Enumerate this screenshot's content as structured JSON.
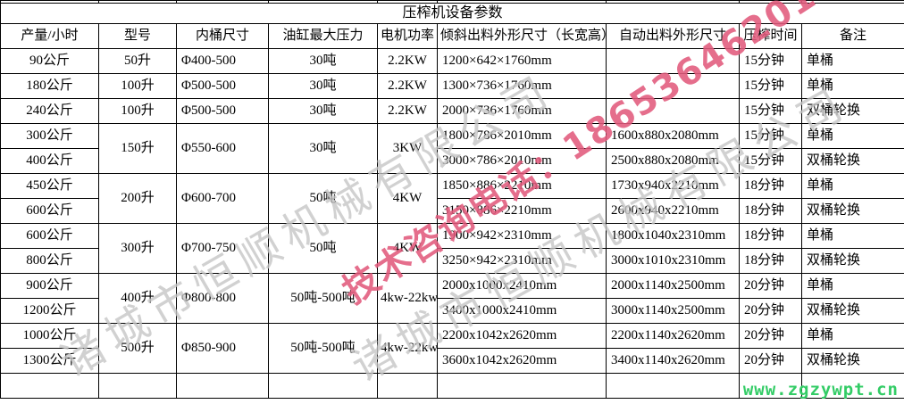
{
  "table": {
    "title": "压榨机设备参数",
    "columns": [
      "产量/小时",
      "型号",
      "内桶尺寸",
      "油缸最大压力",
      "电机功率",
      "倾斜出料外形尺寸（长宽高）",
      "自动出料外形尺寸",
      "压榨时间",
      "备注"
    ],
    "groups": [
      {
        "model": "50升",
        "barrel": "Φ400-500",
        "pressure": "30吨",
        "power": "2.2KW",
        "rows": [
          {
            "capacity": "90公斤",
            "tilt": "1200×642×1760mm",
            "auto": "",
            "time": "15分钟",
            "note": "单桶"
          }
        ]
      },
      {
        "model": "100升",
        "barrel": "Φ500-500",
        "pressure": "30吨",
        "power": "2.2KW",
        "rows": [
          {
            "capacity": "180公斤",
            "tilt": "1300×736×1760mm",
            "auto": "",
            "time": "15分钟",
            "note": "单桶"
          }
        ]
      },
      {
        "model": "100升",
        "barrel": "Φ500-500",
        "pressure": "30吨",
        "power": "2.2KW",
        "rows": [
          {
            "capacity": "240公斤",
            "tilt": "2000×736×1760mm",
            "auto": "",
            "time": "15分钟",
            "note": "双桶轮换"
          }
        ]
      },
      {
        "model": "150升",
        "barrel": "Φ550-600",
        "pressure": "30吨",
        "power": "3KW",
        "rows": [
          {
            "capacity": "300公斤",
            "tilt": "1800×786×2010mm",
            "auto": "1600x880x2080mm",
            "time": "15分钟",
            "note": "单桶"
          },
          {
            "capacity": "400公斤",
            "tilt": "3000×786×2010mm",
            "auto": "2500x880x2080mm",
            "time": "15分钟",
            "note": "双桶轮换"
          }
        ]
      },
      {
        "model": "200升",
        "barrel": "Φ600-700",
        "pressure": "50吨",
        "power": "4KW",
        "rows": [
          {
            "capacity": "450公斤",
            "tilt": "1850×886×2210mm",
            "auto": "1730x940x2210mm",
            "time": "18分钟",
            "note": "单桶"
          },
          {
            "capacity": "600公斤",
            "tilt": "3150×886×2210mm",
            "auto": "2600x940x2210mm",
            "time": "18分钟",
            "note": "双桶轮换"
          }
        ]
      },
      {
        "model": "300升",
        "barrel": "Φ700-750",
        "pressure": "50吨",
        "power": "4KW",
        "rows": [
          {
            "capacity": "600公斤",
            "tilt": "1900×942×2310mm",
            "auto": "1800x1040x2310mm",
            "time": "18分钟",
            "note": "单桶"
          },
          {
            "capacity": "800公斤",
            "tilt": "3250×942×2310mm",
            "auto": "3000x1010x2310mm",
            "time": "18分钟",
            "note": "双桶轮换"
          }
        ]
      },
      {
        "model": "400升",
        "barrel": "Φ800-800",
        "pressure": "50吨-500吨",
        "power": "4kw-22kw",
        "rows": [
          {
            "capacity": "900公斤",
            "tilt": "2000x1000x2410mm",
            "auto": "2000x1140x2500mm",
            "time": "20分钟",
            "note": "单桶"
          },
          {
            "capacity": "1200公斤",
            "tilt": "3400x1000x2410mm",
            "auto": "3000x1140x2500mm",
            "time": "20分钟",
            "note": "双桶轮换"
          }
        ]
      },
      {
        "model": "500升",
        "barrel": "Φ850-900",
        "pressure": "50吨-500吨",
        "power": "4kw-22kw",
        "rows": [
          {
            "capacity": "1000公斤",
            "tilt": "2200x1042x2620mm",
            "auto": "2200x1140x2620mm",
            "time": "20分钟",
            "note": "单桶"
          },
          {
            "capacity": "1300公斤",
            "tilt": "3600x1042x2620mm",
            "auto": "3400x1140x2620mm",
            "time": "20分钟",
            "note": "双桶轮换"
          }
        ]
      },
      {
        "model": "",
        "barrel": "",
        "pressure": "",
        "power": "",
        "rows": [
          {
            "capacity": "",
            "tilt": "",
            "auto": "",
            "time": "",
            "note": ""
          }
        ]
      }
    ]
  },
  "watermarks": {
    "company_text": "诸城市恒顺机械有限公司",
    "company_color": "#c6c6c6",
    "phone_text": "技术咨询电话：18653646201",
    "phone_color": "#e25b7d",
    "url_text": "www.zgzywpt.cn",
    "url_color": "#33cc66"
  }
}
